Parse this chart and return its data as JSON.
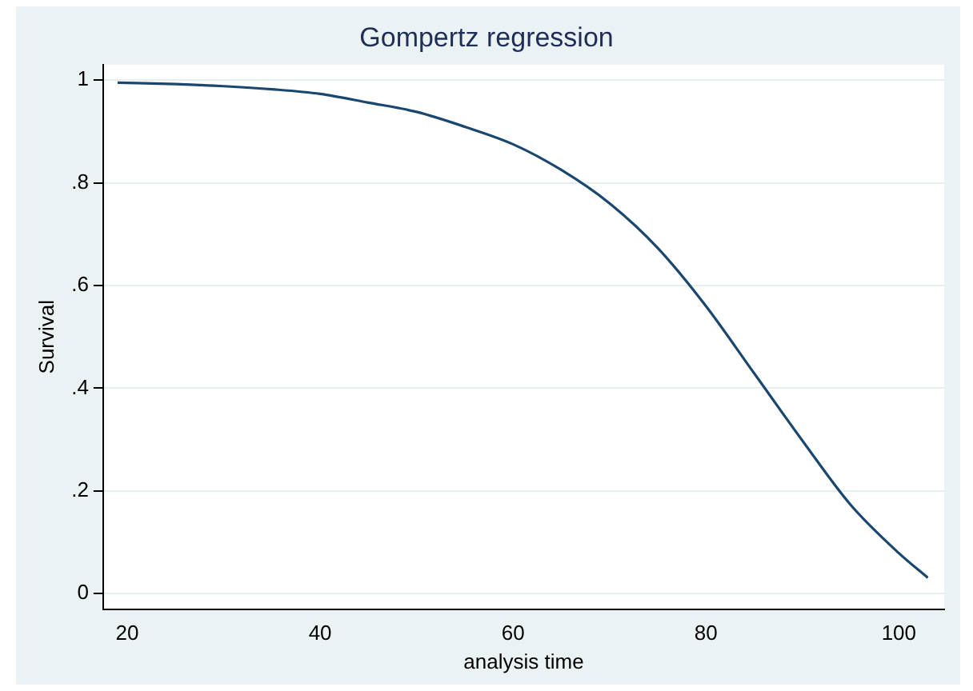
{
  "chart_data": {
    "type": "line",
    "title": "Gompertz regression",
    "xlabel": "analysis time",
    "ylabel": "Survival",
    "x": [
      19,
      25,
      30,
      35,
      40,
      45,
      50,
      55,
      60,
      65,
      70,
      75,
      80,
      85,
      90,
      95,
      100,
      103
    ],
    "series": [
      {
        "color": "#1a476f",
        "values": [
          0.995,
          0.992,
          0.988,
          0.982,
          0.973,
          0.956,
          0.938,
          0.909,
          0.875,
          0.825,
          0.76,
          0.673,
          0.56,
          0.429,
          0.298,
          0.173,
          0.079,
          0.031
        ]
      }
    ],
    "xlim": [
      17.5,
      104.7
    ],
    "xticks": [
      20,
      40,
      60,
      80,
      100
    ],
    "ylim": [
      -0.03,
      1.03
    ],
    "yticks": [
      0,
      {
        "value": 0.2,
        "label": ".2"
      },
      {
        "value": 0.4,
        "label": ".4"
      },
      {
        "value": 0.6,
        "label": ".6"
      },
      {
        "value": 0.8,
        "label": ".8"
      },
      1
    ],
    "grid": "y",
    "marker": "none",
    "line_style": "solid"
  }
}
